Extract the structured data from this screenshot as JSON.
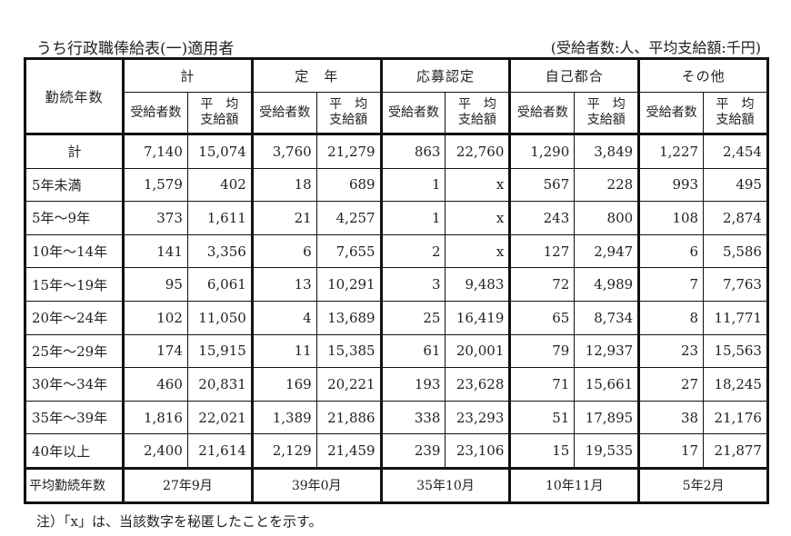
{
  "title": "うち行政職俸給表(一)適用者",
  "unit_note": "(受給者数:人、平均支給額:千円)",
  "table": {
    "row_header_label": "勤続年数",
    "groups": [
      {
        "label": "計"
      },
      {
        "label": "定　年"
      },
      {
        "label": "応募認定"
      },
      {
        "label": "自己都合"
      },
      {
        "label": "その他"
      }
    ],
    "sub_headers": {
      "count": "受給者数",
      "avg_line1": "平　均",
      "avg_line2": "支給額"
    },
    "rows": [
      {
        "label": "計",
        "values": [
          "7,140",
          "15,074",
          "3,760",
          "21,279",
          "863",
          "22,760",
          "1,290",
          "3,849",
          "1,227",
          "2,454"
        ]
      },
      {
        "label": "5年未満",
        "values": [
          "1,579",
          "402",
          "18",
          "689",
          "1",
          "x",
          "567",
          "228",
          "993",
          "495"
        ]
      },
      {
        "label": "5年〜9年",
        "values": [
          "373",
          "1,611",
          "21",
          "4,257",
          "1",
          "x",
          "243",
          "800",
          "108",
          "2,874"
        ]
      },
      {
        "label": "10年〜14年",
        "values": [
          "141",
          "3,356",
          "6",
          "7,655",
          "2",
          "x",
          "127",
          "2,947",
          "6",
          "5,586"
        ]
      },
      {
        "label": "15年〜19年",
        "values": [
          "95",
          "6,061",
          "13",
          "10,291",
          "3",
          "9,483",
          "72",
          "4,989",
          "7",
          "7,763"
        ]
      },
      {
        "label": "20年〜24年",
        "values": [
          "102",
          "11,050",
          "4",
          "13,689",
          "25",
          "16,419",
          "65",
          "8,734",
          "8",
          "11,771"
        ]
      },
      {
        "label": "25年〜29年",
        "values": [
          "174",
          "15,915",
          "11",
          "15,385",
          "61",
          "20,001",
          "79",
          "12,937",
          "23",
          "15,563"
        ]
      },
      {
        "label": "30年〜34年",
        "values": [
          "460",
          "20,831",
          "169",
          "20,221",
          "193",
          "23,628",
          "71",
          "15,661",
          "27",
          "18,245"
        ]
      },
      {
        "label": "35年〜39年",
        "values": [
          "1,816",
          "22,021",
          "1,389",
          "21,886",
          "338",
          "23,293",
          "51",
          "17,895",
          "38",
          "21,176"
        ]
      },
      {
        "label": "40年以上",
        "values": [
          "2,400",
          "21,614",
          "2,129",
          "21,459",
          "239",
          "23,106",
          "15",
          "19,535",
          "17",
          "21,877"
        ]
      }
    ],
    "avg_row": {
      "label": "平均勤続年数",
      "values": [
        "27年9月",
        "39年0月",
        "35年10月",
        "10年11月",
        "5年2月"
      ]
    }
  },
  "footnote": "注）「x」は、当該数字を秘匿したことを示す。"
}
